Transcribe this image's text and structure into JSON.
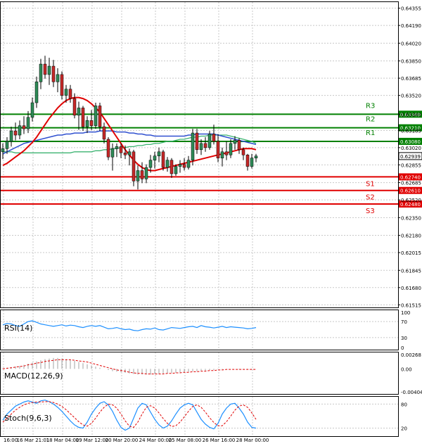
{
  "chart_data": [
    {
      "type": "candlestick",
      "pane": "price",
      "ylim": [
        0.6149,
        0.6442
      ],
      "y_ticks": [
        "0.64355",
        "0.64190",
        "0.64020",
        "0.63850",
        "0.63685",
        "0.63520",
        "0.63340",
        "0.63185",
        "0.63020",
        "0.62855",
        "0.62685",
        "0.62520",
        "0.62350",
        "0.62180",
        "0.62015",
        "0.61845",
        "0.61680",
        "0.61515"
      ],
      "x_ticks": [
        "16:00",
        "16 Mar 21:01",
        "18 Mar 04:00",
        "19 Mar 12:00",
        "20 Mar 20:00",
        "24 Mar 00:00",
        "25 Mar 08:00",
        "26 Mar 16:00",
        "28 Mar 00:00"
      ],
      "current_price": "0.62939",
      "candles": [
        [
          0.6298,
          0.6306,
          0.6291,
          0.6301
        ],
        [
          0.6301,
          0.6312,
          0.6296,
          0.6308
        ],
        [
          0.6308,
          0.6322,
          0.6303,
          0.6318
        ],
        [
          0.6318,
          0.6326,
          0.6309,
          0.6314
        ],
        [
          0.6314,
          0.6328,
          0.631,
          0.6323
        ],
        [
          0.6323,
          0.6332,
          0.6315,
          0.632
        ],
        [
          0.632,
          0.6337,
          0.6316,
          0.6331
        ],
        [
          0.6331,
          0.635,
          0.6327,
          0.6345
        ],
        [
          0.6345,
          0.637,
          0.634,
          0.6365
        ],
        [
          0.6365,
          0.6387,
          0.6358,
          0.6382
        ],
        [
          0.6382,
          0.639,
          0.6368,
          0.6372
        ],
        [
          0.6372,
          0.6388,
          0.6362,
          0.638
        ],
        [
          0.638,
          0.6386,
          0.636,
          0.6365
        ],
        [
          0.6365,
          0.6378,
          0.6355,
          0.6372
        ],
        [
          0.6372,
          0.6375,
          0.6348,
          0.6352
        ],
        [
          0.6352,
          0.6362,
          0.6345,
          0.6358
        ],
        [
          0.6358,
          0.6362,
          0.6345,
          0.6349
        ],
        [
          0.6349,
          0.6354,
          0.633,
          0.6333
        ],
        [
          0.6333,
          0.6346,
          0.6319,
          0.634
        ],
        [
          0.634,
          0.6342,
          0.6318,
          0.6322
        ],
        [
          0.6322,
          0.6332,
          0.6316,
          0.6328
        ],
        [
          0.6328,
          0.6338,
          0.6319,
          0.6323
        ],
        [
          0.6323,
          0.6345,
          0.632,
          0.6342
        ],
        [
          0.6342,
          0.6345,
          0.6318,
          0.6322
        ],
        [
          0.6322,
          0.6326,
          0.6306,
          0.631
        ],
        [
          0.631,
          0.6312,
          0.629,
          0.6293
        ],
        [
          0.6293,
          0.6306,
          0.628,
          0.6301
        ],
        [
          0.6301,
          0.6306,
          0.6293,
          0.6303
        ],
        [
          0.6303,
          0.6306,
          0.6292,
          0.6297
        ],
        [
          0.6297,
          0.6304,
          0.6291,
          0.6295
        ],
        [
          0.6295,
          0.6301,
          0.6285,
          0.6298
        ],
        [
          0.6298,
          0.63,
          0.6265,
          0.627
        ],
        [
          0.627,
          0.6285,
          0.6262,
          0.628
        ],
        [
          0.628,
          0.6288,
          0.6268,
          0.6272
        ],
        [
          0.6272,
          0.6286,
          0.6268,
          0.6283
        ],
        [
          0.6283,
          0.6295,
          0.6278,
          0.629
        ],
        [
          0.629,
          0.6298,
          0.6282,
          0.6294
        ],
        [
          0.6294,
          0.6302,
          0.6288,
          0.6298
        ],
        [
          0.6298,
          0.63,
          0.628,
          0.6283
        ],
        [
          0.6283,
          0.6293,
          0.6279,
          0.629
        ],
        [
          0.629,
          0.6292,
          0.6273,
          0.6277
        ],
        [
          0.6277,
          0.6286,
          0.6275,
          0.6284
        ],
        [
          0.6284,
          0.629,
          0.6278,
          0.6286
        ],
        [
          0.6286,
          0.6292,
          0.628,
          0.6283
        ],
        [
          0.6283,
          0.6294,
          0.6281,
          0.629
        ],
        [
          0.629,
          0.632,
          0.6285,
          0.6316
        ],
        [
          0.6316,
          0.632,
          0.6296,
          0.63
        ],
        [
          0.63,
          0.631,
          0.6295,
          0.6306
        ],
        [
          0.6306,
          0.6312,
          0.6298,
          0.6302
        ],
        [
          0.6302,
          0.6318,
          0.63,
          0.6315
        ],
        [
          0.6315,
          0.6324,
          0.6305,
          0.6308
        ],
        [
          0.6308,
          0.6315,
          0.6288,
          0.6292
        ],
        [
          0.6292,
          0.6302,
          0.6284,
          0.6298
        ],
        [
          0.6298,
          0.6308,
          0.629,
          0.6295
        ],
        [
          0.6295,
          0.631,
          0.6292,
          0.6306
        ],
        [
          0.6306,
          0.6313,
          0.63,
          0.6309
        ],
        [
          0.6309,
          0.6311,
          0.6296,
          0.63
        ],
        [
          0.63,
          0.6302,
          0.629,
          0.6295
        ],
        [
          0.6295,
          0.6296,
          0.628,
          0.6284
        ],
        [
          0.6284,
          0.6296,
          0.6282,
          0.6292
        ],
        [
          0.6292,
          0.6296,
          0.6288,
          0.6294
        ]
      ],
      "ma_red": [
        0.6285,
        0.6287,
        0.629,
        0.6293,
        0.6296,
        0.6299,
        0.6303,
        0.6307,
        0.6312,
        0.6318,
        0.6324,
        0.633,
        0.6335,
        0.634,
        0.6344,
        0.6347,
        0.6349,
        0.635,
        0.635,
        0.6349,
        0.6347,
        0.6344,
        0.634,
        0.6336,
        0.633,
        0.6324,
        0.6318,
        0.6312,
        0.6306,
        0.63,
        0.6295,
        0.629,
        0.6286,
        0.6283,
        0.6281,
        0.628,
        0.628,
        0.6281,
        0.6282,
        0.6283,
        0.6284,
        0.6285,
        0.6286,
        0.6287,
        0.6288,
        0.6289,
        0.629,
        0.6291,
        0.6292,
        0.6293,
        0.6294,
        0.6295,
        0.6296,
        0.6297,
        0.6298,
        0.6299,
        0.63,
        0.6301,
        0.6301,
        0.6301,
        0.63
      ],
      "ma_blue": [
        0.6296,
        0.6298,
        0.63,
        0.6302,
        0.6304,
        0.6306,
        0.6307,
        0.6308,
        0.6309,
        0.631,
        0.6311,
        0.6312,
        0.6313,
        0.6314,
        0.6314,
        0.6315,
        0.6315,
        0.6316,
        0.6316,
        0.6316,
        0.6317,
        0.6317,
        0.6317,
        0.6318,
        0.6318,
        0.6318,
        0.6318,
        0.6317,
        0.6317,
        0.6317,
        0.6316,
        0.6316,
        0.6315,
        0.6315,
        0.6314,
        0.6314,
        0.6313,
        0.6313,
        0.6313,
        0.6313,
        0.6313,
        0.6313,
        0.6313,
        0.6313,
        0.6314,
        0.6314,
        0.6315,
        0.6315,
        0.6315,
        0.6315,
        0.6315,
        0.6314,
        0.6313,
        0.6312,
        0.6311,
        0.631,
        0.6309,
        0.6308,
        0.6307,
        0.6306,
        0.6305
      ],
      "ma_green": [
        0.6298,
        0.6298,
        0.6298,
        0.6297,
        0.6297,
        0.6297,
        0.6297,
        0.6297,
        0.6297,
        0.6297,
        0.6297,
        0.6297,
        0.6297,
        0.6297,
        0.6297,
        0.6297,
        0.6297,
        0.6298,
        0.6298,
        0.6298,
        0.6298,
        0.6298,
        0.6299,
        0.6299,
        0.63,
        0.63,
        0.6301,
        0.6301,
        0.6302,
        0.6302,
        0.6303,
        0.6303,
        0.6304,
        0.6304,
        0.6305,
        0.6305,
        0.6306,
        0.6306,
        0.6307,
        0.6308,
        0.6308,
        0.6309,
        0.631,
        0.631,
        0.6311,
        0.6312,
        0.6312,
        0.6313,
        0.6313,
        0.6314,
        0.6314,
        0.6314,
        0.6314,
        0.6314,
        0.6313,
        0.6312,
        0.6311,
        0.631,
        0.6309,
        0.6308,
        0.6306
      ],
      "levels": [
        {
          "label": "R3",
          "value": 0.6334,
          "tag": "0.63340",
          "color": "#008000"
        },
        {
          "label": "R2",
          "value": 0.6321,
          "tag": "0.63210",
          "color": "#008000"
        },
        {
          "label": "R1",
          "value": 0.6308,
          "tag": "0.63080",
          "color": "#008000"
        },
        {
          "label": "S1",
          "value": 0.6274,
          "tag": "0.62740",
          "color": "#e00000"
        },
        {
          "label": "S2",
          "value": 0.6261,
          "tag": "0.62610",
          "color": "#e00000"
        },
        {
          "label": "S3",
          "value": 0.6248,
          "tag": "0.62480",
          "color": "#e00000"
        }
      ]
    },
    {
      "type": "line",
      "pane": "rsi",
      "name": "RSI(14)",
      "ylim": [
        0,
        100
      ],
      "y_ticks": [
        "100",
        "70",
        "30",
        "0"
      ],
      "values": [
        62,
        65,
        64,
        60,
        58,
        64,
        70,
        72,
        68,
        64,
        62,
        60,
        58,
        60,
        62,
        59,
        61,
        60,
        57,
        55,
        58,
        60,
        58,
        60,
        56,
        52,
        53,
        55,
        52,
        50,
        51,
        48,
        47,
        50,
        52,
        51,
        54,
        50,
        49,
        52,
        55,
        54,
        53,
        55,
        57,
        58,
        55,
        60,
        57,
        56,
        54,
        56,
        58,
        55,
        57,
        56,
        55,
        54,
        52,
        53,
        55
      ]
    },
    {
      "type": "bar",
      "pane": "macd",
      "name": "MACD(12,26,9)",
      "ylim": [
        -0.0044,
        0.003
      ],
      "y_ticks": [
        "0.00268",
        "0.00",
        "-0.00404"
      ],
      "histogram": [
        0.0001,
        0.0002,
        0.0003,
        0.0004,
        0.0005,
        0.0007,
        0.0009,
        0.0011,
        0.0013,
        0.0015,
        0.0017,
        0.0018,
        0.0019,
        0.0019,
        0.0018,
        0.0017,
        0.0016,
        0.0014,
        0.0012,
        0.001,
        0.0008,
        0.0006,
        0.0004,
        0.0002,
        0.0,
        -0.0002,
        -0.0004,
        -0.0005,
        -0.0006,
        -0.0007,
        -0.0008,
        -0.0009,
        -0.001,
        -0.001,
        -0.001,
        -0.001,
        -0.0009,
        -0.0009,
        -0.0008,
        -0.0008,
        -0.0007,
        -0.0007,
        -0.0006,
        -0.0006,
        -0.0005,
        -0.0004,
        -0.0004,
        -0.0003,
        -0.0003,
        -0.0002,
        -0.0002,
        -0.0001,
        -0.0001,
        0.0,
        0.0,
        0.0,
        -0.0001,
        -0.0001,
        -0.0001,
        -0.0001,
        0.0
      ],
      "signal": [
        0.0,
        0.0001,
        0.0002,
        0.0003,
        0.0004,
        0.0005,
        0.0007,
        0.0008,
        0.001,
        0.0011,
        0.0013,
        0.0014,
        0.0015,
        0.0016,
        0.0016,
        0.0016,
        0.0016,
        0.0015,
        0.0014,
        0.0013,
        0.0012,
        0.001,
        0.0008,
        0.0006,
        0.0004,
        0.0002,
        0.0,
        -0.0002,
        -0.0003,
        -0.0004,
        -0.0006,
        -0.0007,
        -0.0008,
        -0.0008,
        -0.0009,
        -0.0009,
        -0.0009,
        -0.0009,
        -0.0009,
        -0.0008,
        -0.0008,
        -0.0007,
        -0.0007,
        -0.0006,
        -0.0006,
        -0.0005,
        -0.0005,
        -0.0004,
        -0.0004,
        -0.0003,
        -0.0003,
        -0.0002,
        -0.0002,
        -0.0001,
        -0.0001,
        -0.0001,
        -0.0001,
        -0.0001,
        -0.0001,
        -0.0001,
        -0.0001
      ]
    },
    {
      "type": "line",
      "pane": "stoch",
      "name": "Stoch(9,6,3)",
      "ylim": [
        0,
        100
      ],
      "y_ticks": [
        "80",
        "20"
      ],
      "k": [
        40,
        55,
        65,
        75,
        80,
        85,
        88,
        85,
        82,
        88,
        90,
        86,
        80,
        72,
        62,
        50,
        38,
        28,
        22,
        20,
        35,
        55,
        70,
        82,
        86,
        78,
        62,
        40,
        22,
        15,
        20,
        45,
        70,
        82,
        78,
        60,
        42,
        28,
        20,
        25,
        38,
        55,
        70,
        78,
        82,
        78,
        60,
        42,
        30,
        22,
        18,
        32,
        55,
        70,
        80,
        82,
        70,
        55,
        35,
        22,
        20
      ],
      "d": [
        35,
        45,
        55,
        65,
        72,
        78,
        82,
        84,
        85,
        85,
        86,
        86,
        84,
        80,
        74,
        66,
        56,
        46,
        36,
        28,
        25,
        32,
        45,
        60,
        72,
        80,
        78,
        70,
        55,
        38,
        25,
        22,
        35,
        55,
        72,
        76,
        70,
        58,
        44,
        32,
        24,
        26,
        35,
        48,
        62,
        74,
        78,
        72,
        60,
        46,
        34,
        26,
        26,
        36,
        50,
        65,
        75,
        78,
        72,
        58,
        42
      ]
    }
  ]
}
